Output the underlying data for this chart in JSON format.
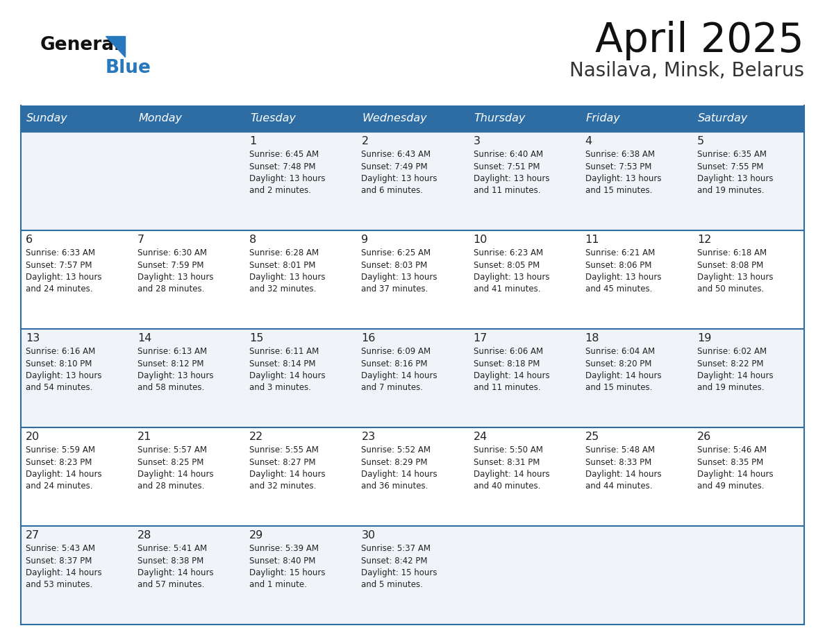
{
  "title": "April 2025",
  "subtitle": "Nasilava, Minsk, Belarus",
  "header_bg": "#2E6DA4",
  "header_text": "#FFFFFF",
  "cell_bg_odd": "#F0F4F8",
  "cell_bg_even": "#FFFFFF",
  "border_color": "#2E6DA4",
  "text_color": "#222222",
  "logo_general_color": "#111111",
  "logo_blue_color": "#2878BE",
  "day_names": [
    "Sunday",
    "Monday",
    "Tuesday",
    "Wednesday",
    "Thursday",
    "Friday",
    "Saturday"
  ],
  "weeks": [
    [
      {
        "day": "",
        "info": ""
      },
      {
        "day": "",
        "info": ""
      },
      {
        "day": "1",
        "info": "Sunrise: 6:45 AM\nSunset: 7:48 PM\nDaylight: 13 hours\nand 2 minutes."
      },
      {
        "day": "2",
        "info": "Sunrise: 6:43 AM\nSunset: 7:49 PM\nDaylight: 13 hours\nand 6 minutes."
      },
      {
        "day": "3",
        "info": "Sunrise: 6:40 AM\nSunset: 7:51 PM\nDaylight: 13 hours\nand 11 minutes."
      },
      {
        "day": "4",
        "info": "Sunrise: 6:38 AM\nSunset: 7:53 PM\nDaylight: 13 hours\nand 15 minutes."
      },
      {
        "day": "5",
        "info": "Sunrise: 6:35 AM\nSunset: 7:55 PM\nDaylight: 13 hours\nand 19 minutes."
      }
    ],
    [
      {
        "day": "6",
        "info": "Sunrise: 6:33 AM\nSunset: 7:57 PM\nDaylight: 13 hours\nand 24 minutes."
      },
      {
        "day": "7",
        "info": "Sunrise: 6:30 AM\nSunset: 7:59 PM\nDaylight: 13 hours\nand 28 minutes."
      },
      {
        "day": "8",
        "info": "Sunrise: 6:28 AM\nSunset: 8:01 PM\nDaylight: 13 hours\nand 32 minutes."
      },
      {
        "day": "9",
        "info": "Sunrise: 6:25 AM\nSunset: 8:03 PM\nDaylight: 13 hours\nand 37 minutes."
      },
      {
        "day": "10",
        "info": "Sunrise: 6:23 AM\nSunset: 8:05 PM\nDaylight: 13 hours\nand 41 minutes."
      },
      {
        "day": "11",
        "info": "Sunrise: 6:21 AM\nSunset: 8:06 PM\nDaylight: 13 hours\nand 45 minutes."
      },
      {
        "day": "12",
        "info": "Sunrise: 6:18 AM\nSunset: 8:08 PM\nDaylight: 13 hours\nand 50 minutes."
      }
    ],
    [
      {
        "day": "13",
        "info": "Sunrise: 6:16 AM\nSunset: 8:10 PM\nDaylight: 13 hours\nand 54 minutes."
      },
      {
        "day": "14",
        "info": "Sunrise: 6:13 AM\nSunset: 8:12 PM\nDaylight: 13 hours\nand 58 minutes."
      },
      {
        "day": "15",
        "info": "Sunrise: 6:11 AM\nSunset: 8:14 PM\nDaylight: 14 hours\nand 3 minutes."
      },
      {
        "day": "16",
        "info": "Sunrise: 6:09 AM\nSunset: 8:16 PM\nDaylight: 14 hours\nand 7 minutes."
      },
      {
        "day": "17",
        "info": "Sunrise: 6:06 AM\nSunset: 8:18 PM\nDaylight: 14 hours\nand 11 minutes."
      },
      {
        "day": "18",
        "info": "Sunrise: 6:04 AM\nSunset: 8:20 PM\nDaylight: 14 hours\nand 15 minutes."
      },
      {
        "day": "19",
        "info": "Sunrise: 6:02 AM\nSunset: 8:22 PM\nDaylight: 14 hours\nand 19 minutes."
      }
    ],
    [
      {
        "day": "20",
        "info": "Sunrise: 5:59 AM\nSunset: 8:23 PM\nDaylight: 14 hours\nand 24 minutes."
      },
      {
        "day": "21",
        "info": "Sunrise: 5:57 AM\nSunset: 8:25 PM\nDaylight: 14 hours\nand 28 minutes."
      },
      {
        "day": "22",
        "info": "Sunrise: 5:55 AM\nSunset: 8:27 PM\nDaylight: 14 hours\nand 32 minutes."
      },
      {
        "day": "23",
        "info": "Sunrise: 5:52 AM\nSunset: 8:29 PM\nDaylight: 14 hours\nand 36 minutes."
      },
      {
        "day": "24",
        "info": "Sunrise: 5:50 AM\nSunset: 8:31 PM\nDaylight: 14 hours\nand 40 minutes."
      },
      {
        "day": "25",
        "info": "Sunrise: 5:48 AM\nSunset: 8:33 PM\nDaylight: 14 hours\nand 44 minutes."
      },
      {
        "day": "26",
        "info": "Sunrise: 5:46 AM\nSunset: 8:35 PM\nDaylight: 14 hours\nand 49 minutes."
      }
    ],
    [
      {
        "day": "27",
        "info": "Sunrise: 5:43 AM\nSunset: 8:37 PM\nDaylight: 14 hours\nand 53 minutes."
      },
      {
        "day": "28",
        "info": "Sunrise: 5:41 AM\nSunset: 8:38 PM\nDaylight: 14 hours\nand 57 minutes."
      },
      {
        "day": "29",
        "info": "Sunrise: 5:39 AM\nSunset: 8:40 PM\nDaylight: 15 hours\nand 1 minute."
      },
      {
        "day": "30",
        "info": "Sunrise: 5:37 AM\nSunset: 8:42 PM\nDaylight: 15 hours\nand 5 minutes."
      },
      {
        "day": "",
        "info": ""
      },
      {
        "day": "",
        "info": ""
      },
      {
        "day": "",
        "info": ""
      }
    ]
  ]
}
